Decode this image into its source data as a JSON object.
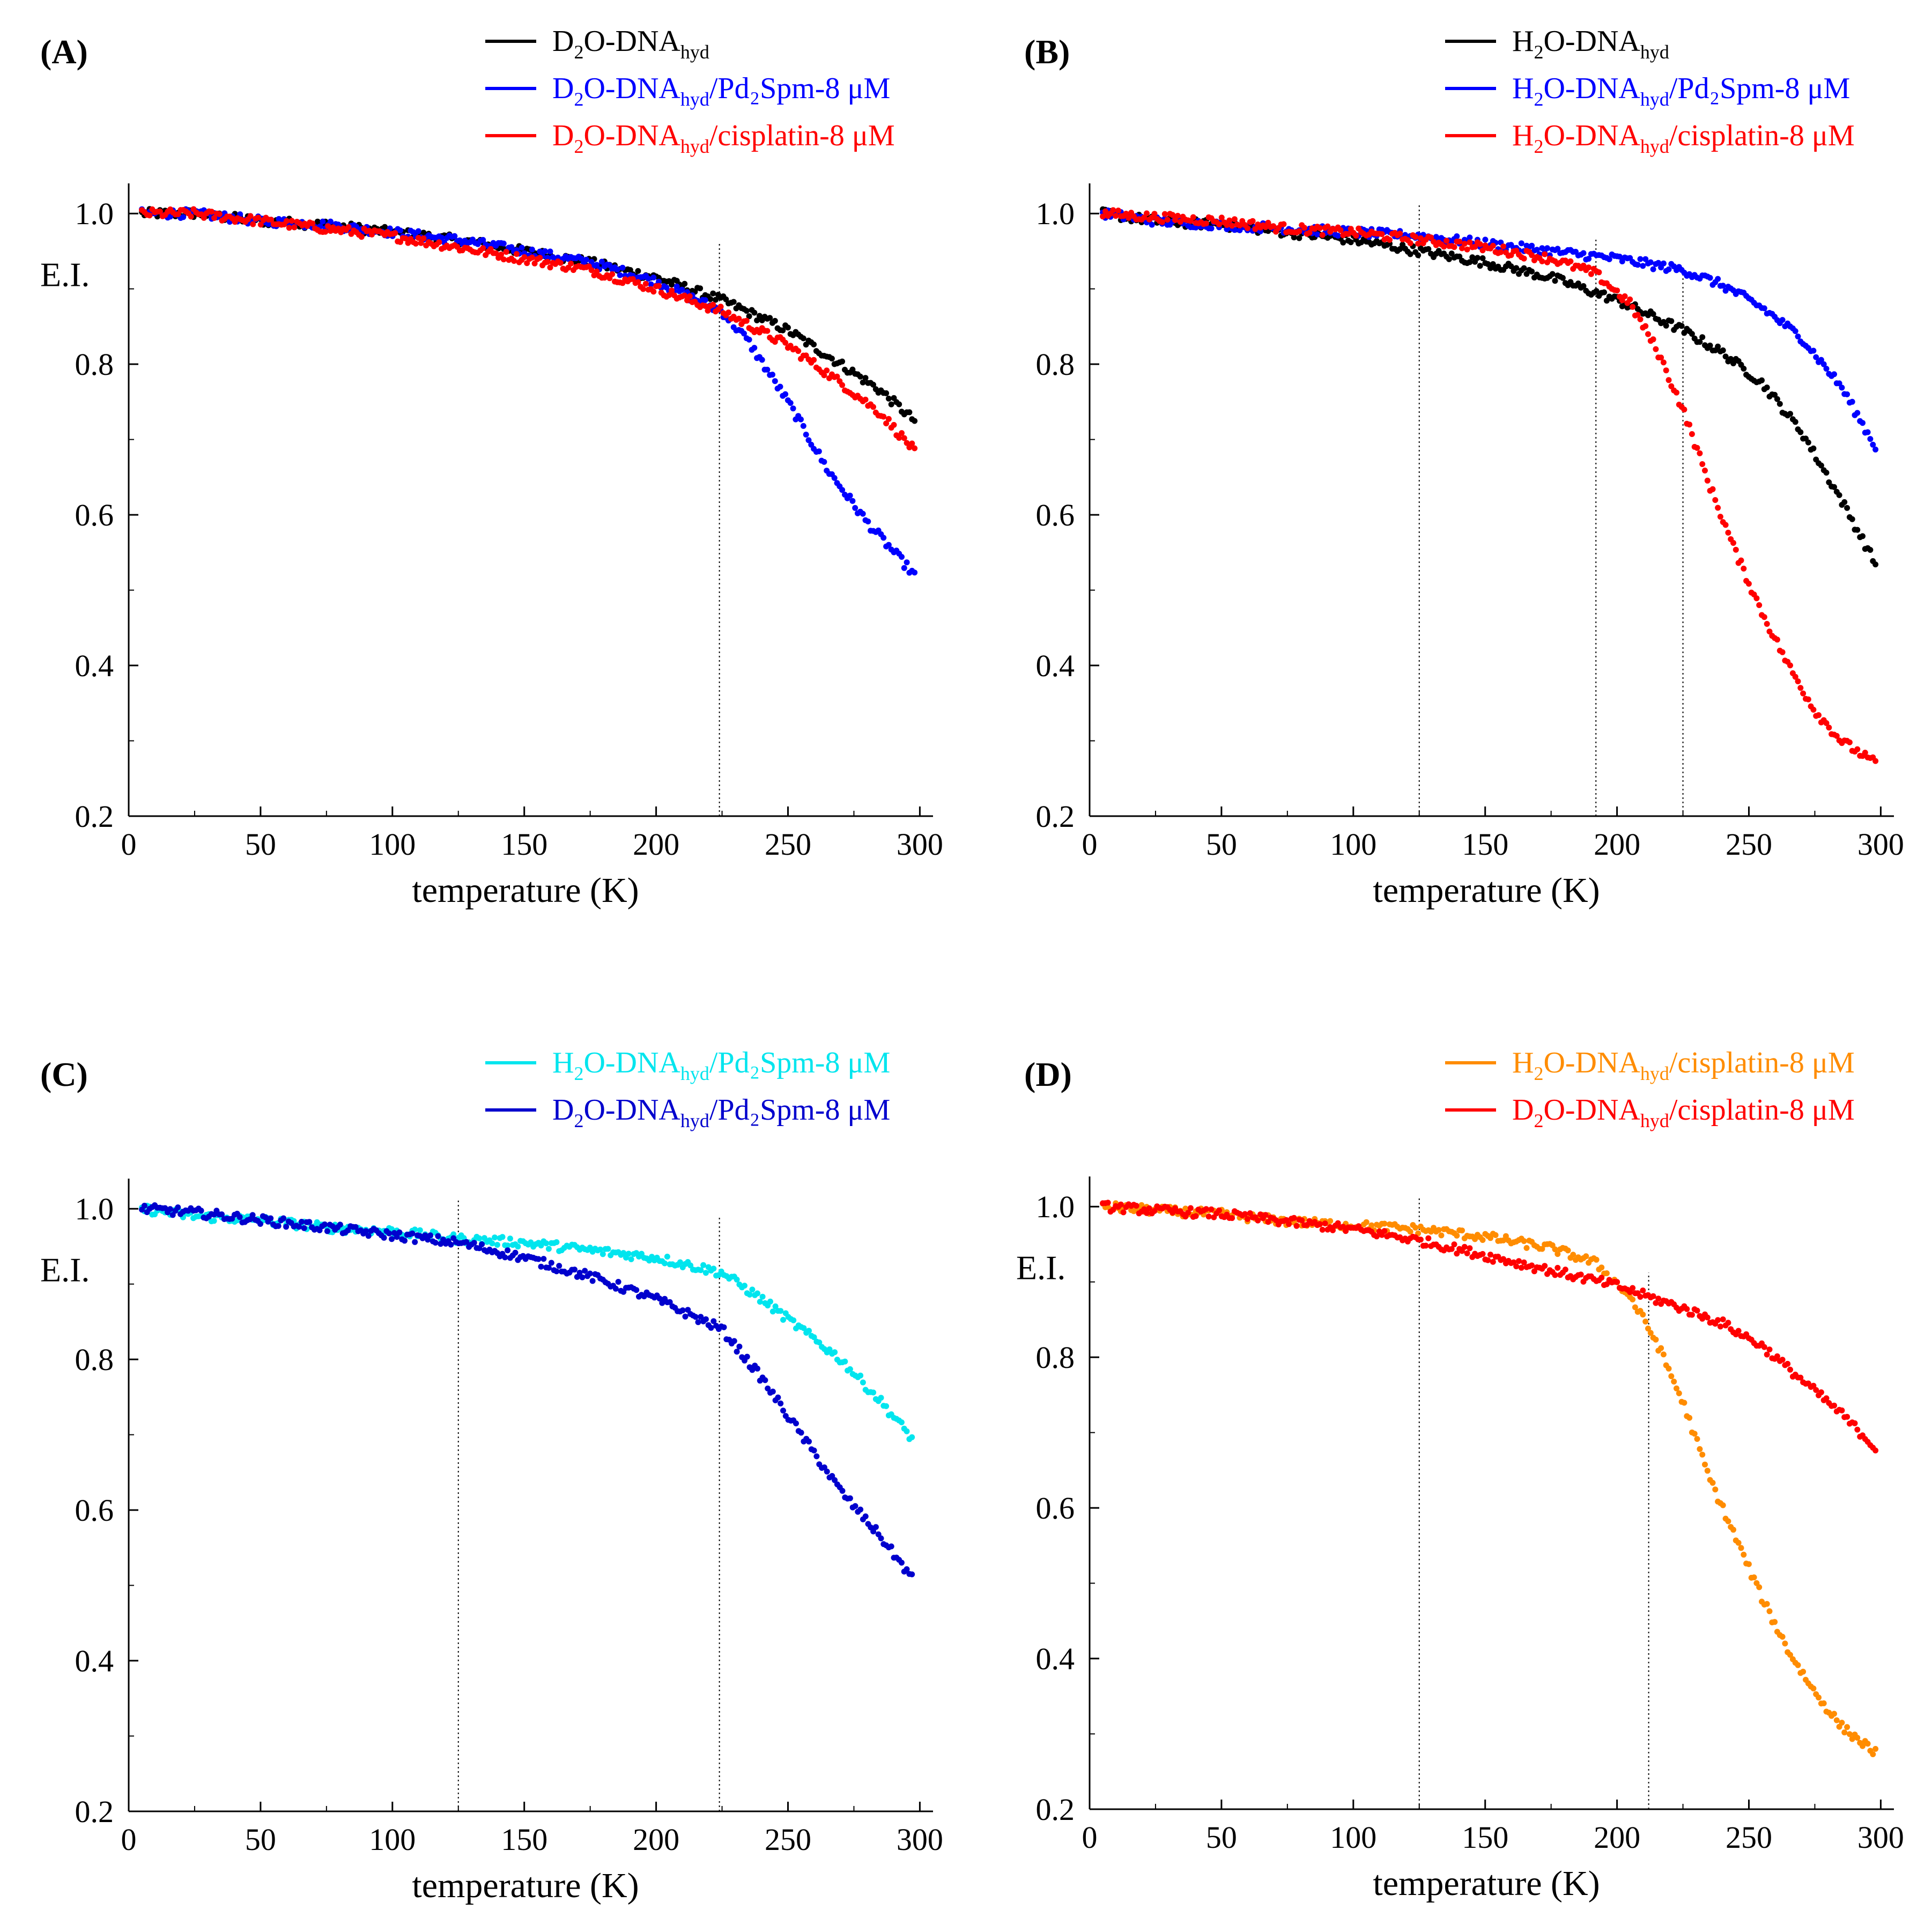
{
  "chart_data": [
    {
      "panel": "(A)",
      "type": "scatter",
      "xlabel": "temperature (K)",
      "ylabel": "E.I.",
      "xlim": [
        0,
        305
      ],
      "ylim": [
        0.2,
        1.04
      ],
      "xticks": [
        0,
        50,
        100,
        150,
        200,
        250,
        300
      ],
      "xtick_labels": [
        "0",
        "50",
        "100",
        "150",
        "200",
        "250",
        "300"
      ],
      "yticks": [
        0.2,
        0.4,
        0.6,
        0.8,
        1.0
      ],
      "ytick_labels": [
        "0.2",
        "0.4",
        "0.6",
        "0.8",
        "1.0"
      ],
      "vlines": [
        224
      ],
      "series": [
        {
          "name": "D2O-DNAhyd",
          "legend": {
            "pre": "D",
            "sub1": "2",
            "mid": "O-DNA",
            "sub2": "hyd",
            "post": ""
          },
          "color": "#000000",
          "points": [
            [
              5,
              1.0
            ],
            [
              25,
              1.0
            ],
            [
              50,
              0.99
            ],
            [
              75,
              0.985
            ],
            [
              100,
              0.975
            ],
            [
              125,
              0.965
            ],
            [
              150,
              0.95
            ],
            [
              175,
              0.935
            ],
            [
              200,
              0.915
            ],
            [
              225,
              0.885
            ],
            [
              250,
              0.845
            ],
            [
              270,
              0.8
            ],
            [
              285,
              0.765
            ],
            [
              298,
              0.725
            ]
          ]
        },
        {
          "name": "D2O-DNAhyd/Pd2Spm-8 μM",
          "legend": {
            "pre": "D",
            "sub1": "2",
            "mid": "O-DNA",
            "sub2": "hyd",
            "post": "/Pd₂Spm-8 μM"
          },
          "color": "#0000ff",
          "points": [
            [
              5,
              1.0
            ],
            [
              25,
              1.0
            ],
            [
              50,
              0.99
            ],
            [
              75,
              0.985
            ],
            [
              100,
              0.975
            ],
            [
              125,
              0.965
            ],
            [
              150,
              0.95
            ],
            [
              175,
              0.935
            ],
            [
              200,
              0.91
            ],
            [
              225,
              0.87
            ],
            [
              235,
              0.83
            ],
            [
              250,
              0.75
            ],
            [
              265,
              0.66
            ],
            [
              280,
              0.59
            ],
            [
              298,
              0.52
            ]
          ]
        },
        {
          "name": "D2O-DNAhyd/cisplatin-8 μM",
          "legend": {
            "pre": "D",
            "sub1": "2",
            "mid": "O-DNA",
            "sub2": "hyd",
            "post": "/cisplatin-8 μM"
          },
          "color": "#ff0000",
          "points": [
            [
              5,
              1.0
            ],
            [
              25,
              1.0
            ],
            [
              50,
              0.99
            ],
            [
              75,
              0.98
            ],
            [
              100,
              0.97
            ],
            [
              125,
              0.955
            ],
            [
              150,
              0.94
            ],
            [
              175,
              0.925
            ],
            [
              200,
              0.9
            ],
            [
              225,
              0.87
            ],
            [
              250,
              0.825
            ],
            [
              270,
              0.775
            ],
            [
              285,
              0.735
            ],
            [
              298,
              0.685
            ]
          ]
        }
      ]
    },
    {
      "panel": "(B)",
      "type": "scatter",
      "xlabel": "temperature (K)",
      "ylabel": "",
      "xlim": [
        0,
        305
      ],
      "ylim": [
        0.2,
        1.04
      ],
      "xticks": [
        0,
        50,
        100,
        150,
        200,
        250,
        300
      ],
      "xtick_labels": [
        "0",
        "50",
        "100",
        "150",
        "200",
        "250",
        "300"
      ],
      "yticks": [
        0.2,
        0.4,
        0.6,
        0.8,
        1.0
      ],
      "ytick_labels": [
        "0.2",
        "0.4",
        "0.6",
        "0.8",
        "1.0"
      ],
      "vlines": [
        125,
        192,
        225
      ],
      "series": [
        {
          "name": "H2O-DNAhyd",
          "legend": {
            "pre": "H",
            "sub1": "2",
            "mid": "O-DNA",
            "sub2": "hyd",
            "post": ""
          },
          "color": "#000000",
          "points": [
            [
              5,
              1.0
            ],
            [
              25,
              0.99
            ],
            [
              50,
              0.985
            ],
            [
              75,
              0.975
            ],
            [
              100,
              0.965
            ],
            [
              125,
              0.95
            ],
            [
              150,
              0.935
            ],
            [
              175,
              0.915
            ],
            [
              200,
              0.885
            ],
            [
              225,
              0.845
            ],
            [
              240,
              0.815
            ],
            [
              255,
              0.775
            ],
            [
              270,
              0.71
            ],
            [
              285,
              0.62
            ],
            [
              298,
              0.535
            ]
          ]
        },
        {
          "name": "H2O-DNAhyd/Pd2Spm-8 μM",
          "legend": {
            "pre": "H",
            "sub1": "2",
            "mid": "O-DNA",
            "sub2": "hyd",
            "post": "/Pd₂Spm-8 μM"
          },
          "color": "#0000ff",
          "points": [
            [
              5,
              1.0
            ],
            [
              25,
              0.99
            ],
            [
              50,
              0.985
            ],
            [
              75,
              0.98
            ],
            [
              100,
              0.975
            ],
            [
              125,
              0.97
            ],
            [
              150,
              0.96
            ],
            [
              175,
              0.95
            ],
            [
              200,
              0.94
            ],
            [
              225,
              0.925
            ],
            [
              240,
              0.905
            ],
            [
              255,
              0.875
            ],
            [
              270,
              0.835
            ],
            [
              285,
              0.77
            ],
            [
              298,
              0.69
            ]
          ]
        },
        {
          "name": "H2O-DNAhyd/cisplatin-8 μM",
          "legend": {
            "pre": "H",
            "sub1": "2",
            "mid": "O-DNA",
            "sub2": "hyd",
            "post": "/cisplatin-8 μM"
          },
          "color": "#ff0000",
          "points": [
            [
              5,
              1.0
            ],
            [
              25,
              0.995
            ],
            [
              50,
              0.99
            ],
            [
              75,
              0.98
            ],
            [
              100,
              0.975
            ],
            [
              125,
              0.965
            ],
            [
              150,
              0.955
            ],
            [
              175,
              0.94
            ],
            [
              192,
              0.92
            ],
            [
              205,
              0.88
            ],
            [
              215,
              0.82
            ],
            [
              225,
              0.74
            ],
            [
              235,
              0.64
            ],
            [
              245,
              0.55
            ],
            [
              255,
              0.47
            ],
            [
              265,
              0.4
            ],
            [
              275,
              0.34
            ],
            [
              285,
              0.3
            ],
            [
              298,
              0.27
            ]
          ]
        }
      ]
    },
    {
      "panel": "(C)",
      "type": "scatter",
      "xlabel": "temperature (K)",
      "ylabel": "E.I.",
      "xlim": [
        0,
        305
      ],
      "ylim": [
        0.2,
        1.04
      ],
      "xticks": [
        0,
        50,
        100,
        150,
        200,
        250,
        300
      ],
      "xtick_labels": [
        "0",
        "50",
        "100",
        "150",
        "200",
        "250",
        "300"
      ],
      "yticks": [
        0.2,
        0.4,
        0.6,
        0.8,
        1.0
      ],
      "ytick_labels": [
        "0.2",
        "0.4",
        "0.6",
        "0.8",
        "1.0"
      ],
      "vlines": [
        125,
        224
      ],
      "series": [
        {
          "name": "H2O-DNAhyd/Pd2Spm-8 μM",
          "legend": {
            "pre": "H",
            "sub1": "2",
            "mid": "O-DNA",
            "sub2": "hyd",
            "post": "/Pd₂Spm-8 μM"
          },
          "color": "#00e5ee",
          "points": [
            [
              5,
              1.0
            ],
            [
              25,
              0.99
            ],
            [
              50,
              0.985
            ],
            [
              75,
              0.975
            ],
            [
              100,
              0.97
            ],
            [
              125,
              0.96
            ],
            [
              150,
              0.955
            ],
            [
              175,
              0.945
            ],
            [
              200,
              0.935
            ],
            [
              225,
              0.915
            ],
            [
              240,
              0.88
            ],
            [
              255,
              0.84
            ],
            [
              270,
              0.8
            ],
            [
              285,
              0.745
            ],
            [
              297,
              0.695
            ]
          ]
        },
        {
          "name": "D2O-DNAhyd/Pd2Spm-8 μM",
          "legend": {
            "pre": "D",
            "sub1": "2",
            "mid": "O-DNA",
            "sub2": "hyd",
            "post": "/Pd₂Spm-8 μM"
          },
          "color": "#0000cd",
          "points": [
            [
              5,
              1.0
            ],
            [
              25,
              0.995
            ],
            [
              50,
              0.985
            ],
            [
              75,
              0.975
            ],
            [
              100,
              0.965
            ],
            [
              125,
              0.955
            ],
            [
              150,
              0.935
            ],
            [
              175,
              0.91
            ],
            [
              200,
              0.88
            ],
            [
              225,
              0.84
            ],
            [
              240,
              0.775
            ],
            [
              255,
              0.7
            ],
            [
              270,
              0.625
            ],
            [
              285,
              0.565
            ],
            [
              297,
              0.51
            ]
          ]
        }
      ]
    },
    {
      "panel": "(D)",
      "type": "scatter",
      "xlabel": "temperature (K)",
      "ylabel": "E.I.",
      "xlim": [
        0,
        305
      ],
      "ylim": [
        0.2,
        1.04
      ],
      "xticks": [
        0,
        50,
        100,
        150,
        200,
        250,
        300
      ],
      "xtick_labels": [
        "0",
        "50",
        "100",
        "150",
        "200",
        "250",
        "300"
      ],
      "yticks": [
        0.2,
        0.4,
        0.6,
        0.8,
        1.0
      ],
      "ytick_labels": [
        "0.2",
        "0.4",
        "0.6",
        "0.8",
        "1.0"
      ],
      "vlines": [
        125,
        212
      ],
      "series": [
        {
          "name": "H2O-DNAhyd/cisplatin-8 μM",
          "legend": {
            "pre": "H",
            "sub1": "2",
            "mid": "O-DNA",
            "sub2": "hyd",
            "post": "/cisplatin-8 μM"
          },
          "color": "#ff8c00",
          "points": [
            [
              5,
              1.0
            ],
            [
              25,
              0.995
            ],
            [
              50,
              0.99
            ],
            [
              75,
              0.98
            ],
            [
              100,
              0.975
            ],
            [
              125,
              0.97
            ],
            [
              150,
              0.96
            ],
            [
              175,
              0.945
            ],
            [
              192,
              0.925
            ],
            [
              205,
              0.88
            ],
            [
              215,
              0.82
            ],
            [
              225,
              0.74
            ],
            [
              235,
              0.64
            ],
            [
              245,
              0.56
            ],
            [
              255,
              0.48
            ],
            [
              265,
              0.41
            ],
            [
              275,
              0.355
            ],
            [
              285,
              0.31
            ],
            [
              298,
              0.275
            ]
          ]
        },
        {
          "name": "D2O-DNAhyd/cisplatin-8 μM",
          "legend": {
            "pre": "D",
            "sub1": "2",
            "mid": "O-DNA",
            "sub2": "hyd",
            "post": "/cisplatin-8 μM"
          },
          "color": "#ff0000",
          "points": [
            [
              5,
              1.0
            ],
            [
              25,
              0.995
            ],
            [
              50,
              0.99
            ],
            [
              75,
              0.98
            ],
            [
              100,
              0.97
            ],
            [
              125,
              0.955
            ],
            [
              150,
              0.935
            ],
            [
              175,
              0.915
            ],
            [
              200,
              0.895
            ],
            [
              212,
              0.88
            ],
            [
              225,
              0.865
            ],
            [
              240,
              0.845
            ],
            [
              255,
              0.815
            ],
            [
              270,
              0.77
            ],
            [
              285,
              0.725
            ],
            [
              298,
              0.68
            ]
          ]
        }
      ]
    }
  ]
}
